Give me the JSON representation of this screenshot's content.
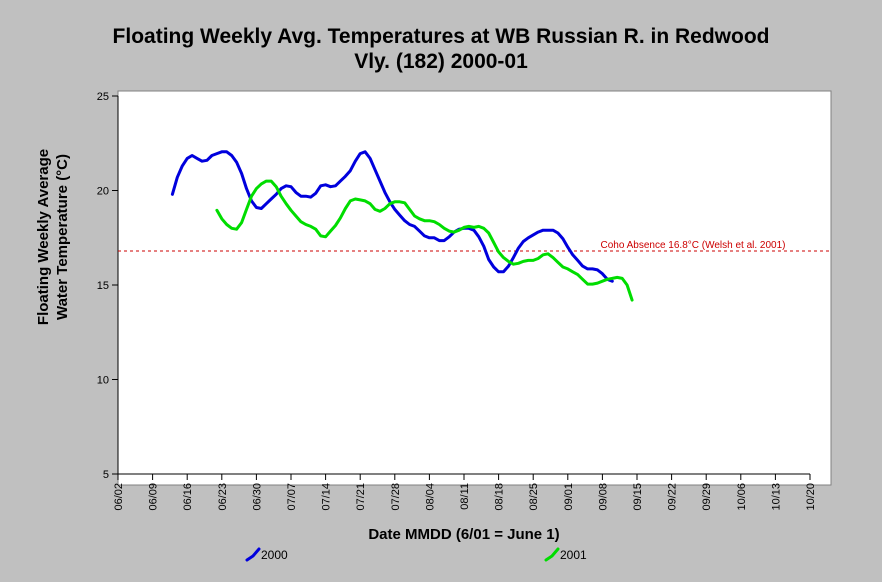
{
  "chart_data": {
    "type": "line",
    "title_lines": [
      "Floating Weekly Avg. Temperatures at WB Russian R. in Redwood",
      "Vly. (182) 2000-01"
    ],
    "xlabel": "Date MMDD (6/01 = June 1)",
    "ylabel_lines": [
      "Floating Weekly Average",
      "Water Temperature (°C)"
    ],
    "x_tick_labels": [
      "06/02",
      "06/09",
      "06/16",
      "06/23",
      "06/30",
      "07/07",
      "07/14",
      "07/21",
      "07/28",
      "08/04",
      "08/11",
      "08/18",
      "08/25",
      "09/01",
      "09/08",
      "09/15",
      "09/22",
      "09/29",
      "10/06",
      "10/13",
      "10/20"
    ],
    "x_unit_note": "days since 06/02",
    "xlim": [
      0,
      140
    ],
    "ylim": [
      5,
      25
    ],
    "y_ticks": [
      5,
      10,
      15,
      20,
      25
    ],
    "grid": false,
    "legend_position": "bottom",
    "reference_line": {
      "value": 16.8,
      "label": "Coho Absence 16.8°C (Welsh et al. 2001)",
      "color": "#cc0000",
      "style": "dashed"
    },
    "series": [
      {
        "name": "2000",
        "color": "#0000dd",
        "points": [
          [
            11,
            19.8
          ],
          [
            12,
            20.7
          ],
          [
            13,
            21.3
          ],
          [
            14,
            21.7
          ],
          [
            15,
            21.85
          ],
          [
            16,
            21.7
          ],
          [
            17,
            21.55
          ],
          [
            18,
            21.6
          ],
          [
            19,
            21.85
          ],
          [
            20,
            21.95
          ],
          [
            21,
            22.05
          ],
          [
            22,
            22.05
          ],
          [
            23,
            21.85
          ],
          [
            24,
            21.5
          ],
          [
            25,
            20.9
          ],
          [
            26,
            20.1
          ],
          [
            27,
            19.45
          ],
          [
            28,
            19.1
          ],
          [
            29,
            19.05
          ],
          [
            30,
            19.3
          ],
          [
            31,
            19.55
          ],
          [
            32,
            19.8
          ],
          [
            33,
            20.1
          ],
          [
            34,
            20.25
          ],
          [
            35,
            20.2
          ],
          [
            36,
            19.9
          ],
          [
            37,
            19.7
          ],
          [
            38,
            19.7
          ],
          [
            39,
            19.65
          ],
          [
            40,
            19.85
          ],
          [
            41,
            20.25
          ],
          [
            42,
            20.3
          ],
          [
            43,
            20.2
          ],
          [
            44,
            20.25
          ],
          [
            45,
            20.5
          ],
          [
            46,
            20.75
          ],
          [
            47,
            21.05
          ],
          [
            48,
            21.55
          ],
          [
            49,
            21.95
          ],
          [
            50,
            22.05
          ],
          [
            51,
            21.7
          ],
          [
            52,
            21.1
          ],
          [
            53,
            20.5
          ],
          [
            54,
            19.9
          ],
          [
            55,
            19.4
          ],
          [
            56,
            19.0
          ],
          [
            57,
            18.7
          ],
          [
            58,
            18.4
          ],
          [
            59,
            18.2
          ],
          [
            60,
            18.1
          ],
          [
            61,
            17.85
          ],
          [
            62,
            17.6
          ],
          [
            63,
            17.5
          ],
          [
            64,
            17.5
          ],
          [
            65,
            17.35
          ],
          [
            66,
            17.35
          ],
          [
            67,
            17.55
          ],
          [
            68,
            17.8
          ],
          [
            69,
            17.95
          ],
          [
            70,
            18.0
          ],
          [
            71,
            18.0
          ],
          [
            72,
            17.9
          ],
          [
            73,
            17.55
          ],
          [
            74,
            17.05
          ],
          [
            75,
            16.35
          ],
          [
            76,
            15.95
          ],
          [
            77,
            15.7
          ],
          [
            78,
            15.7
          ],
          [
            79,
            16.0
          ],
          [
            80,
            16.45
          ],
          [
            81,
            16.95
          ],
          [
            82,
            17.3
          ],
          [
            83,
            17.5
          ],
          [
            84,
            17.65
          ],
          [
            85,
            17.8
          ],
          [
            86,
            17.9
          ],
          [
            87,
            17.9
          ],
          [
            88,
            17.9
          ],
          [
            89,
            17.75
          ],
          [
            90,
            17.45
          ],
          [
            91,
            17.0
          ],
          [
            92,
            16.6
          ],
          [
            93,
            16.3
          ],
          [
            94,
            16.0
          ],
          [
            95,
            15.85
          ],
          [
            96,
            15.85
          ],
          [
            97,
            15.8
          ],
          [
            98,
            15.6
          ],
          [
            99,
            15.3
          ],
          [
            100,
            15.2
          ]
        ]
      },
      {
        "name": "2001",
        "color": "#00dd00",
        "points": [
          [
            20,
            18.95
          ],
          [
            21,
            18.5
          ],
          [
            22,
            18.2
          ],
          [
            23,
            18.0
          ],
          [
            24,
            17.95
          ],
          [
            25,
            18.3
          ],
          [
            26,
            19.0
          ],
          [
            27,
            19.7
          ],
          [
            28,
            20.1
          ],
          [
            29,
            20.35
          ],
          [
            30,
            20.5
          ],
          [
            31,
            20.5
          ],
          [
            32,
            20.2
          ],
          [
            33,
            19.7
          ],
          [
            34,
            19.3
          ],
          [
            35,
            18.95
          ],
          [
            36,
            18.65
          ],
          [
            37,
            18.35
          ],
          [
            38,
            18.2
          ],
          [
            39,
            18.1
          ],
          [
            40,
            17.95
          ],
          [
            41,
            17.6
          ],
          [
            42,
            17.55
          ],
          [
            43,
            17.85
          ],
          [
            44,
            18.15
          ],
          [
            45,
            18.55
          ],
          [
            46,
            19.05
          ],
          [
            47,
            19.45
          ],
          [
            48,
            19.55
          ],
          [
            49,
            19.5
          ],
          [
            50,
            19.45
          ],
          [
            51,
            19.3
          ],
          [
            52,
            19.0
          ],
          [
            53,
            18.9
          ],
          [
            54,
            19.05
          ],
          [
            55,
            19.3
          ],
          [
            56,
            19.4
          ],
          [
            57,
            19.4
          ],
          [
            58,
            19.35
          ],
          [
            59,
            19.0
          ],
          [
            60,
            18.65
          ],
          [
            61,
            18.5
          ],
          [
            62,
            18.4
          ],
          [
            63,
            18.4
          ],
          [
            64,
            18.35
          ],
          [
            65,
            18.2
          ],
          [
            66,
            18.0
          ],
          [
            67,
            17.85
          ],
          [
            68,
            17.8
          ],
          [
            69,
            17.9
          ],
          [
            70,
            18.05
          ],
          [
            71,
            18.1
          ],
          [
            72,
            18.05
          ],
          [
            73,
            18.1
          ],
          [
            74,
            18.0
          ],
          [
            75,
            17.75
          ],
          [
            76,
            17.25
          ],
          [
            77,
            16.75
          ],
          [
            78,
            16.45
          ],
          [
            79,
            16.25
          ],
          [
            80,
            16.1
          ],
          [
            81,
            16.15
          ],
          [
            82,
            16.25
          ],
          [
            83,
            16.3
          ],
          [
            84,
            16.3
          ],
          [
            85,
            16.4
          ],
          [
            86,
            16.6
          ],
          [
            87,
            16.65
          ],
          [
            88,
            16.45
          ],
          [
            89,
            16.2
          ],
          [
            90,
            15.95
          ],
          [
            91,
            15.85
          ],
          [
            92,
            15.7
          ],
          [
            93,
            15.55
          ],
          [
            94,
            15.3
          ],
          [
            95,
            15.05
          ],
          [
            96,
            15.05
          ],
          [
            97,
            15.1
          ],
          [
            98,
            15.2
          ],
          [
            99,
            15.3
          ],
          [
            100,
            15.35
          ],
          [
            101,
            15.4
          ],
          [
            102,
            15.35
          ],
          [
            103,
            15.0
          ],
          [
            104,
            14.2
          ]
        ]
      }
    ]
  }
}
